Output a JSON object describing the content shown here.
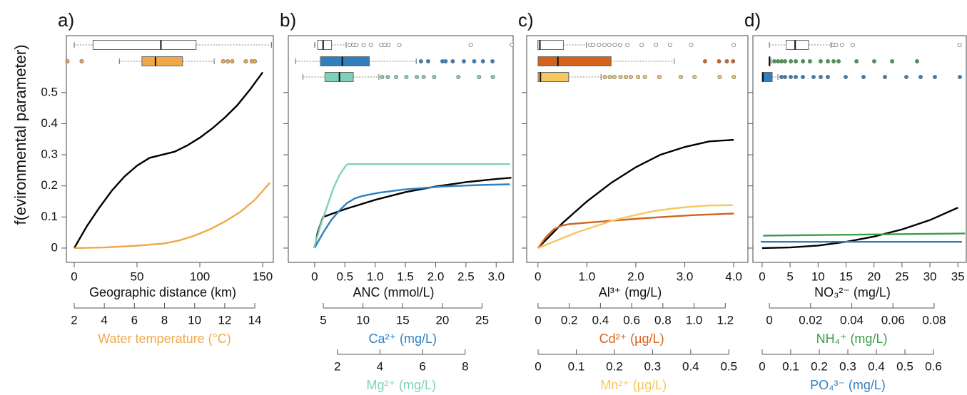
{
  "chart_data": [
    {
      "type": "line",
      "panel_label": "a)",
      "ylabel": "f(evironmental parameter)",
      "ylim": [
        -0.046,
        0.683
      ],
      "yticks": [
        0,
        0.1,
        0.2,
        0.3,
        0.4,
        0.5
      ],
      "ytick_labels": true,
      "axes": [
        {
          "label": "Geographic distance (km)",
          "color": "#000000",
          "xlim": [
            -6.25,
            158.5
          ],
          "xticks": [
            0,
            50,
            100,
            150
          ],
          "curve": {
            "x": [
              0,
              10,
              20,
              30,
              40,
              50,
              60,
              70,
              80,
              90,
              100,
              110,
              120,
              130,
              140,
              150
            ],
            "values": [
              0,
              0.07,
              0.13,
              0.185,
              0.23,
              0.265,
              0.29,
              0.3,
              0.31,
              0.33,
              0.355,
              0.385,
              0.42,
              0.46,
              0.51,
              0.565
            ]
          },
          "box": {
            "whisker_low": 0,
            "q1": 15,
            "median": 69,
            "q3": 97,
            "whisker_high": 157,
            "outliers": [],
            "fill": "#ffffff"
          }
        },
        {
          "label": "Water temperature (°C)",
          "color": "#f0a848",
          "xlim": [
            1.48,
            15.23
          ],
          "xticks": [
            2,
            4,
            6,
            8,
            10,
            12,
            14
          ],
          "curve": {
            "x": [
              2,
              4,
              6,
              8,
              9,
              10,
              11,
              12,
              13,
              14,
              15
            ],
            "values": [
              0,
              0.002,
              0.007,
              0.015,
              0.025,
              0.04,
              0.06,
              0.085,
              0.115,
              0.155,
              0.21
            ]
          },
          "box": {
            "whisker_low": 5.0,
            "q1": 6.5,
            "median": 7.4,
            "q3": 9.2,
            "whisker_high": 11.3,
            "outliers": [
              1.55,
              2.5,
              11.9,
              12.2,
              12.5,
              13.4,
              13.8,
              14.0
            ],
            "fill": "#f0a848"
          }
        }
      ]
    },
    {
      "type": "line",
      "panel_label": "b)",
      "ylim": [
        -0.046,
        0.683
      ],
      "yticks": [
        0,
        0.1,
        0.2,
        0.3,
        0.4,
        0.5
      ],
      "ytick_labels": false,
      "axes": [
        {
          "label": "ANC (mmol/L)",
          "color": "#000000",
          "xlim": [
            -0.435,
            3.28
          ],
          "xticks": [
            0,
            0.5,
            {
              "value": 1,
              "label": "1.0"
            },
            1.5,
            {
              "value": 2,
              "label": "2.0"
            },
            2.5,
            {
              "value": 3,
              "label": "3.0"
            }
          ],
          "curve": {
            "x": [
              0,
              0.05,
              0.14,
              0.5,
              1,
              1.5,
              2,
              2.5,
              3,
              3.25
            ],
            "values": [
              0,
              0.05,
              0.1,
              0.125,
              0.155,
              0.18,
              0.198,
              0.212,
              0.222,
              0.226
            ]
          },
          "box": {
            "whisker_low": 0,
            "q1": 0.05,
            "median": 0.14,
            "q3": 0.28,
            "whisker_high": 0.52,
            "outliers": [
              0.58,
              0.64,
              0.69,
              0.81,
              0.93,
              1.1,
              1.16,
              1.22,
              1.4,
              2.58,
              3.26
            ],
            "fill": "#ffffff"
          }
        },
        {
          "label": "Ca²⁺ (mg/L)",
          "color": "#2f7fc0",
          "xlim": [
            0.6,
            28.9
          ],
          "xticks": [
            5,
            10,
            15,
            20,
            25
          ],
          "curve": {
            "x": [
              3.9,
              5,
              6,
              7,
              8,
              9,
              10,
              12,
              15,
              20,
              25,
              28.5
            ],
            "values": [
              0,
              0.05,
              0.09,
              0.12,
              0.145,
              0.16,
              0.168,
              0.178,
              0.188,
              0.198,
              0.203,
              0.205
            ]
          },
          "box": {
            "whisker_low": 1.5,
            "q1": 4.64,
            "median": 7.4,
            "q3": 10.8,
            "whisker_high": 16.7,
            "outliers": [
              17.3,
              18.2,
              20,
              20.4,
              21.3,
              22.7,
              24,
              25.1,
              26.3
            ],
            "fill": "#2f7fc0"
          }
        },
        {
          "label": "Mg²⁺ (mg/L)",
          "color": "#7fd1b9",
          "xlim": [
            -0.3,
            10.25
          ],
          "xticks": [
            2,
            4,
            6,
            8
          ],
          "curve": {
            "x": [
              0.9,
              1.2,
              1.5,
              1.8,
              2.1,
              2.4,
              2.5,
              10.1
            ],
            "values": [
              0,
              0.07,
              0.13,
              0.19,
              0.235,
              0.265,
              0.27,
              0.27
            ]
          },
          "box": {
            "whisker_low": 0.38,
            "q1": 1.42,
            "median": 2.1,
            "q3": 2.75,
            "whisker_high": 3.95,
            "outliers": [
              4.1,
              4.37,
              4.76,
              5.24,
              5.73,
              6.05,
              6.54,
              7.68,
              8.65,
              9.3
            ],
            "fill": "#7fd1b9"
          }
        }
      ]
    },
    {
      "type": "line",
      "panel_label": "c)",
      "ylim": [
        -0.046,
        0.683
      ],
      "yticks": [
        0,
        0.1,
        0.2,
        0.3,
        0.4,
        0.5
      ],
      "ytick_labels": false,
      "axes": [
        {
          "label": "Al³⁺ (mg/L)",
          "color": "#000000",
          "xlim": [
            -0.23,
            4.29
          ],
          "xticks": [
            0,
            {
              "value": 1,
              "label": "1.0"
            },
            {
              "value": 2,
              "label": "2.0"
            },
            {
              "value": 3,
              "label": "3.0"
            },
            {
              "value": 4,
              "label": "4.0"
            }
          ],
          "curve": {
            "x": [
              0,
              0.5,
              1,
              1.5,
              2,
              2.5,
              3,
              3.5,
              4
            ],
            "values": [
              0,
              0.08,
              0.15,
              0.21,
              0.26,
              0.3,
              0.325,
              0.343,
              0.348
            ]
          },
          "box": {
            "whisker_low": 0,
            "q1": 0,
            "median": 0.04,
            "q3": 0.52,
            "whisker_high": 0.99,
            "outliers": [
              1.07,
              1.13,
              1.25,
              1.36,
              1.46,
              1.57,
              1.68,
              1.83,
              2.12,
              2.41,
              2.7,
              3.13,
              4.0
            ],
            "fill": "#ffffff"
          }
        },
        {
          "label": "Cd²⁺ (µg/L)",
          "color": "#d4621c",
          "xlim": [
            -0.073,
            1.345
          ],
          "xticks": [
            0,
            0.2,
            0.4,
            0.6,
            0.8,
            {
              "value": 1,
              "label": "1.0"
            },
            1.2
          ],
          "curve": {
            "x": [
              0,
              0.05,
              0.1,
              0.15,
              0.2,
              0.4,
              0.6,
              0.8,
              1.0,
              1.2,
              1.255
            ],
            "values": [
              0,
              0.035,
              0.06,
              0.072,
              0.077,
              0.085,
              0.093,
              0.1,
              0.106,
              0.11,
              0.111
            ]
          },
          "box": {
            "whisker_low": 0,
            "q1": 0,
            "median": 0.127,
            "q3": 0.468,
            "whisker_high": 0.873,
            "outliers": [
              1.07,
              1.16,
              1.21,
              1.25
            ],
            "fill": "#d4621c"
          }
        },
        {
          "label": "Mn²⁺ (µg/L)",
          "color": "#f6c75e",
          "xlim": [
            -0.03,
            0.55
          ],
          "xticks": [
            0,
            0.1,
            0.2,
            0.3,
            0.4,
            0.5
          ],
          "curve": {
            "x": [
              0,
              0.05,
              0.1,
              0.15,
              0.2,
              0.25,
              0.3,
              0.35,
              0.4,
              0.45,
              0.51
            ],
            "values": [
              0,
              0.025,
              0.05,
              0.07,
              0.09,
              0.105,
              0.118,
              0.127,
              0.133,
              0.137,
              0.138
            ]
          },
          "box": {
            "whisker_low": 0,
            "q1": 0,
            "median": 0.006,
            "q3": 0.08,
            "whisker_high": 0.165,
            "outliers": [
              0.175,
              0.188,
              0.2,
              0.216,
              0.23,
              0.243,
              0.262,
              0.28,
              0.318,
              0.374,
              0.41,
              0.476,
              0.513
            ],
            "fill": "#f6c75e"
          }
        }
      ]
    },
    {
      "type": "line",
      "panel_label": "d)",
      "ylim": [
        -0.046,
        0.683
      ],
      "yticks": [
        0,
        0.1,
        0.2,
        0.3,
        0.4,
        0.5
      ],
      "ytick_labels": false,
      "axes": [
        {
          "label": "NO₃²⁻ (mg/L)",
          "color": "#000000",
          "xlim": [
            -1.65,
            36.5
          ],
          "xticks": [
            0,
            5,
            10,
            15,
            20,
            25,
            30,
            35
          ],
          "curve": {
            "x": [
              0,
              5,
              10,
              15,
              20,
              25,
              30,
              35
            ],
            "values": [
              0,
              0.002,
              0.008,
              0.02,
              0.037,
              0.06,
              0.09,
              0.13
            ]
          },
          "box": {
            "whisker_low": 1.3,
            "q1": 4.3,
            "median": 5.9,
            "q3": 8.3,
            "whisker_high": 12.3,
            "outliers": [
              12.7,
              13.2,
              14.3,
              16.2,
              35.3
            ],
            "fill": "#ffffff"
          }
        },
        {
          "label": "NH₄⁺ (mg/L)",
          "color": "#3a9e4a",
          "xlim": [
            -0.008,
            0.0956
          ],
          "xticks": [
            0,
            0.02,
            0.04,
            0.06,
            0.08
          ],
          "curve": {
            "x": [
              -0.003,
              0.095
            ],
            "values": [
              0.04,
              0.047
            ]
          },
          "box": {
            "whisker_low": 0,
            "q1": 0,
            "median": 0,
            "q3": 0.0003,
            "whisker_high": 0.0008,
            "outliers": [
              0.0024,
              0.0042,
              0.0059,
              0.0076,
              0.0104,
              0.0128,
              0.0163,
              0.0197,
              0.0249,
              0.0284,
              0.0312,
              0.0336,
              0.0423,
              0.0509,
              0.0596,
              0.0717
            ],
            "fill": "#3a9e4a"
          }
        },
        {
          "label": "PO₄³⁻ (mg/L)",
          "color": "#2f7fc0",
          "xlim": [
            -0.0325,
            0.715
          ],
          "xticks": [
            0,
            0.1,
            0.2,
            0.3,
            0.4,
            0.5,
            0.6
          ],
          "curve": {
            "x": [
              -0.005,
              0.7
            ],
            "values": [
              0.02,
              0.02
            ]
          },
          "box": {
            "whisker_low": 0,
            "q1": 0,
            "median": 0.0025,
            "q3": 0.035,
            "whisker_high": 0.055,
            "outliers": [
              0.0675,
              0.08,
              0.1,
              0.1175,
              0.1425,
              0.18,
              0.205,
              0.23,
              0.2925,
              0.355,
              0.43,
              0.505,
              0.555,
              0.605,
              0.6925
            ],
            "fill": "#2f7fc0"
          }
        }
      ]
    }
  ]
}
